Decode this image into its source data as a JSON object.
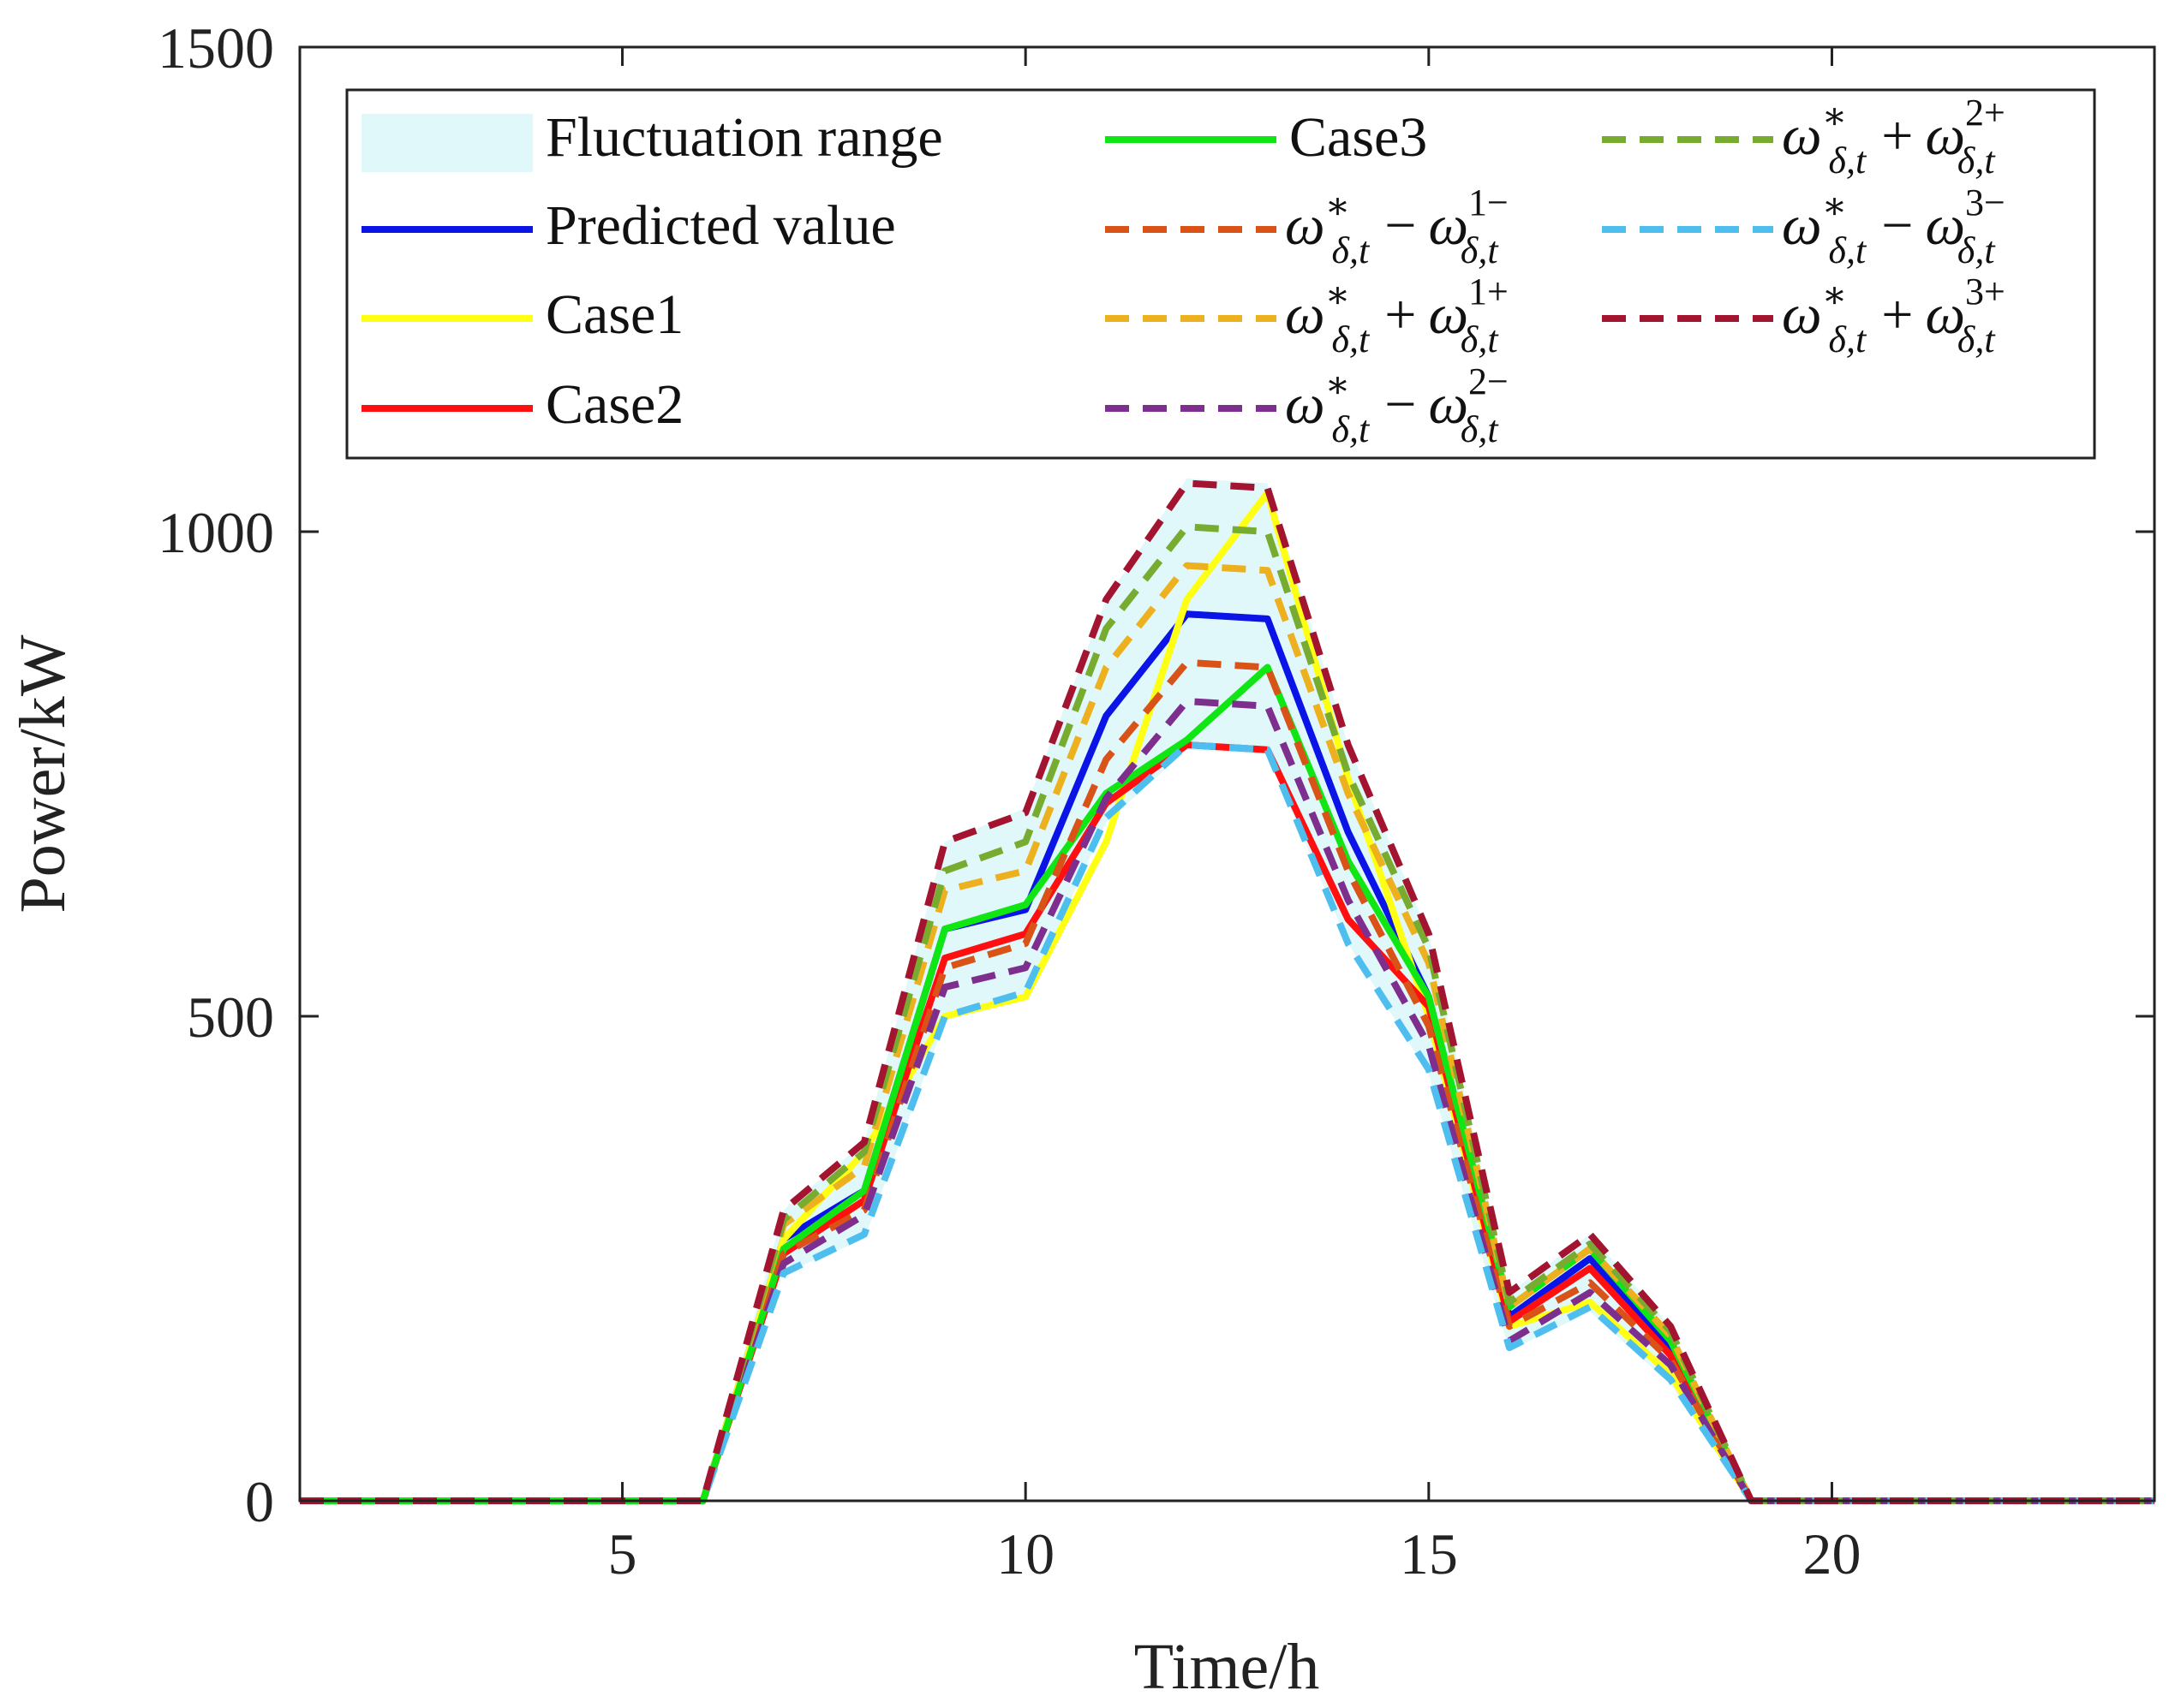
{
  "chart_data": {
    "type": "line",
    "xlabel": "Time/h",
    "ylabel": "Power/kW",
    "xlim": [
      1,
      24
    ],
    "ylim": [
      0,
      1500
    ],
    "x_ticks": [
      5,
      10,
      15,
      20
    ],
    "y_ticks": [
      0,
      500,
      1000,
      1500
    ],
    "x_tick_labels": [
      "5",
      "10",
      "15",
      "20"
    ],
    "y_tick_labels": [
      "0",
      "500",
      "1000",
      "1500"
    ],
    "grid": false,
    "legend_position": "top",
    "x": [
      1,
      2,
      3,
      4,
      5,
      6,
      7,
      8,
      9,
      10,
      11,
      12,
      13,
      14,
      15,
      16,
      17,
      18,
      19,
      20,
      21,
      22,
      23,
      24
    ],
    "band": {
      "name": "Fluctuation range",
      "color": "#e1f8fb",
      "lower": [
        0,
        0,
        0,
        0,
        0,
        0,
        235,
        270,
        495,
        520,
        700,
        775,
        770,
        575,
        440,
        155,
        195,
        120,
        0,
        0,
        0,
        0,
        0,
        0
      ],
      "upper": [
        0,
        0,
        0,
        0,
        0,
        0,
        300,
        370,
        680,
        715,
        930,
        1055,
        1050,
        780,
        585,
        215,
        275,
        180,
        0,
        0,
        0,
        0,
        0,
        0
      ]
    },
    "series": [
      {
        "name": "Predicted value",
        "label_key": "predicted",
        "color": "#0a14e6",
        "dash": "solid",
        "values": [
          0,
          0,
          0,
          0,
          0,
          0,
          270,
          320,
          590,
          610,
          810,
          915,
          910,
          690,
          520,
          190,
          250,
          160,
          0,
          0,
          0,
          0,
          0,
          0
        ]
      },
      {
        "name": "Case1",
        "label_key": "case1",
        "color": "#ffff14",
        "dash": "solid",
        "values": [
          0,
          0,
          0,
          0,
          0,
          0,
          270,
          360,
          500,
          520,
          680,
          930,
          1040,
          745,
          500,
          180,
          205,
          130,
          0,
          0,
          0,
          0,
          0,
          0
        ]
      },
      {
        "name": "Case2",
        "label_key": "case2",
        "color": "#ff0f0f",
        "dash": "solid",
        "values": [
          0,
          0,
          0,
          0,
          0,
          0,
          255,
          310,
          560,
          585,
          720,
          780,
          775,
          600,
          510,
          185,
          240,
          150,
          0,
          0,
          0,
          0,
          0,
          0
        ]
      },
      {
        "name": "Case3",
        "label_key": "case3",
        "color": "#0fe614",
        "dash": "solid",
        "values": [
          0,
          0,
          0,
          0,
          0,
          0,
          260,
          320,
          590,
          615,
          730,
          785,
          860,
          660,
          520,
          200,
          260,
          165,
          0,
          0,
          0,
          0,
          0,
          0
        ]
      },
      {
        "name": "ω*δ,t − ω1−δ,t",
        "label_key": "w1minus",
        "color": "#d95319",
        "dash": "dash",
        "values": [
          0,
          0,
          0,
          0,
          0,
          0,
          255,
          300,
          550,
          575,
          765,
          865,
          860,
          650,
          490,
          180,
          225,
          145,
          0,
          0,
          0,
          0,
          0,
          0
        ]
      },
      {
        "name": "ω*δ,t + ω1+δ,t",
        "label_key": "w1plus",
        "color": "#edb120",
        "dash": "dash",
        "values": [
          0,
          0,
          0,
          0,
          0,
          0,
          285,
          345,
          630,
          650,
          860,
          965,
          960,
          730,
          555,
          200,
          260,
          170,
          0,
          0,
          0,
          0,
          0,
          0
        ]
      },
      {
        "name": "ω*δ,t − ω2−δ,t",
        "label_key": "w2minus",
        "color": "#7e2f8e",
        "dash": "dash",
        "values": [
          0,
          0,
          0,
          0,
          0,
          0,
          245,
          295,
          530,
          550,
          725,
          825,
          820,
          620,
          470,
          165,
          215,
          140,
          0,
          0,
          0,
          0,
          0,
          0
        ]
      },
      {
        "name": "ω*δ,t + ω2+δ,t",
        "label_key": "w2plus",
        "color": "#77ac30",
        "dash": "dash",
        "values": [
          0,
          0,
          0,
          0,
          0,
          0,
          290,
          360,
          650,
          680,
          900,
          1005,
          1000,
          750,
          570,
          205,
          265,
          175,
          0,
          0,
          0,
          0,
          0,
          0
        ]
      },
      {
        "name": "ω*δ,t − ω3−δ,t",
        "label_key": "w3minus",
        "color": "#4dbeee",
        "dash": "dash",
        "values": [
          0,
          0,
          0,
          0,
          0,
          0,
          235,
          275,
          500,
          525,
          705,
          780,
          775,
          575,
          445,
          158,
          200,
          125,
          0,
          0,
          0,
          0,
          0,
          0
        ]
      },
      {
        "name": "ω*δ,t + ω3+δ,t",
        "label_key": "w3plus",
        "color": "#a2142f",
        "dash": "dash",
        "values": [
          0,
          0,
          0,
          0,
          0,
          0,
          300,
          370,
          680,
          710,
          930,
          1050,
          1045,
          780,
          585,
          215,
          275,
          180,
          0,
          0,
          0,
          0,
          0,
          0
        ]
      }
    ]
  },
  "legend": {
    "band": "Fluctuation range",
    "predicted": "Predicted value",
    "case1": "Case1",
    "case2": "Case2",
    "case3": "Case3",
    "math": {
      "omega": "ω",
      "star": "∗",
      "sub": "δ,t",
      "minus": "−",
      "plus": "+",
      "w1minus_sup": "1−",
      "w1plus_sup": "1+",
      "w2minus_sup": "2−",
      "w2plus_sup": "2+",
      "w3minus_sup": "3−",
      "w3plus_sup": "3+"
    }
  }
}
